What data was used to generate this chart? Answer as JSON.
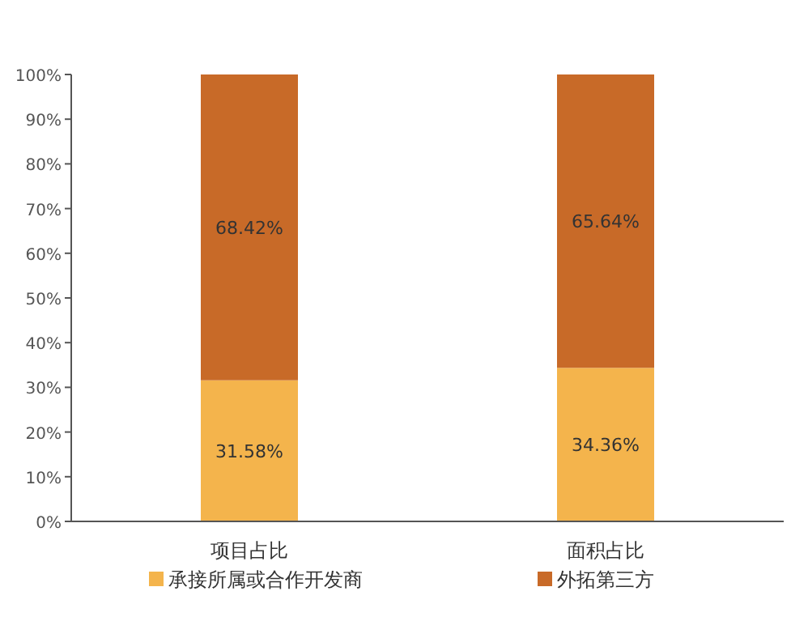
{
  "chart_data": {
    "type": "bar",
    "stacked": true,
    "categories": [
      "项目占比",
      "面积占比"
    ],
    "series": [
      {
        "name": "承接所属或合作开发商",
        "color": "#f4b44c",
        "values": [
          31.58,
          34.36
        ],
        "value_labels": [
          "31.58%",
          "34.36%"
        ]
      },
      {
        "name": "外拓第三方",
        "color": "#c86a28",
        "values": [
          68.42,
          65.64
        ],
        "value_labels": [
          "68.42%",
          "65.64%"
        ]
      }
    ],
    "ylim": [
      0,
      100
    ],
    "yticks": [
      {
        "value": 0,
        "label": "0%"
      },
      {
        "value": 10,
        "label": "10%"
      },
      {
        "value": 20,
        "label": "20%"
      },
      {
        "value": 30,
        "label": "30%"
      },
      {
        "value": 40,
        "label": "40%"
      },
      {
        "value": 50,
        "label": "50%"
      },
      {
        "value": 60,
        "label": "60%"
      },
      {
        "value": 70,
        "label": "70%"
      },
      {
        "value": 80,
        "label": "80%"
      },
      {
        "value": 90,
        "label": "90%"
      },
      {
        "value": 100,
        "label": "100%"
      }
    ],
    "grid": false,
    "legend": "bottom"
  }
}
